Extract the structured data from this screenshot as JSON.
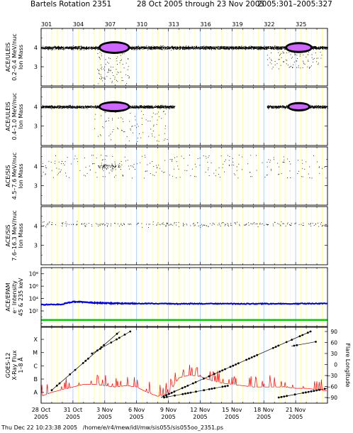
{
  "header": {
    "title": "Bartels Rotation 2351",
    "date_range": "28 Oct 2005 through 23 Nov 2005",
    "doy_range": "2005:301–2005:327"
  },
  "footer": {
    "timestamp": "Thu Dec 22 10:23:38 2005",
    "path": "/home/e/r4/mew/idl/mw/sis055/sis055oo_2351.ps"
  },
  "colors": {
    "grid_day": "#ffff99",
    "grid_rotation": "#aaccff",
    "points": "#000000",
    "density": "#cc66ff",
    "epam_blue": "#0000cc",
    "epam_green": "#00cc00",
    "xray": "#ff0000"
  },
  "chart_data": [
    {
      "type": "scatter",
      "panel": "ULEIS 0.2-0.4",
      "ylabel": [
        "ACE/ULEIS",
        "0.2–0.4 MeV/nuc",
        "Ion Mass"
      ],
      "yticks": [
        "4",
        "3"
      ],
      "ylim": [
        2,
        5
      ],
      "clusters": [
        {
          "x": [
            301,
            328
          ],
          "y": 4.0,
          "spread": 0.08,
          "density": "high"
        },
        {
          "x": [
            306.4,
            309.4
          ],
          "y": 4.0,
          "spread": 0.1,
          "density": "very high (purple core)"
        },
        {
          "x": [
            324,
            326.6
          ],
          "y": 4.0,
          "spread": 0.08,
          "density": "very high (purple core)"
        },
        {
          "x": [
            306.3,
            309.3
          ],
          "y": [
            2.1,
            3.8
          ],
          "density": "scatter"
        },
        {
          "x": [
            322.3,
            327.5
          ],
          "y": [
            2.9,
            3.8
          ],
          "density": "scatter"
        }
      ]
    },
    {
      "type": "scatter",
      "panel": "ULEIS 0.4-1.0",
      "ylabel": [
        "ACE/ULEIS",
        "0.4–1.0 MeV/nuc",
        "Ion Mass"
      ],
      "yticks": [
        "4",
        "3"
      ],
      "ylim": [
        2,
        5
      ],
      "clusters": [
        {
          "x": [
            301,
            313.6
          ],
          "y": 4.0,
          "spread": 0.07,
          "density": "high"
        },
        {
          "x": [
            306.4,
            309.4
          ],
          "y": 4.0,
          "spread": 0.08,
          "density": "very high (purple core)"
        },
        {
          "x": [
            322.3,
            328
          ],
          "y": 4.0,
          "spread": 0.07,
          "density": "high"
        },
        {
          "x": [
            324.2,
            326.4
          ],
          "y": 4.0,
          "spread": 0.06,
          "density": "very high (purple core)"
        },
        {
          "x": [
            306,
            313
          ],
          "y": [
            2.2,
            3.8
          ],
          "density": "scatter"
        }
      ]
    },
    {
      "type": "scatter",
      "panel": "SIS 4.5-7.6",
      "ylabel": [
        "ACE/SIS",
        "4.5–7.6 MeV/nuc",
        "Ion Mass"
      ],
      "yticks": [
        "4",
        "3"
      ],
      "ylim": [
        2,
        5
      ],
      "clusters": [
        {
          "x": [
            301,
            328
          ],
          "y": [
            3.4,
            4.6
          ],
          "density": "sparse"
        },
        {
          "x": [
            306.3,
            308.5
          ],
          "y": 4.0,
          "spread": 0.15,
          "density": "moderate"
        }
      ]
    },
    {
      "type": "scatter",
      "panel": "SIS 7.6-16.3",
      "ylabel": [
        "ACE/SIS",
        "7.6–16.3 MeV/nuc",
        "Ion Mass"
      ],
      "yticks": [
        "4",
        "3"
      ],
      "ylim": [
        2,
        5
      ],
      "clusters": [
        {
          "x": [
            301,
            328
          ],
          "y": 4.1,
          "spread": 0.12,
          "density": "sparse"
        }
      ]
    },
    {
      "type": "line",
      "panel": "EPAM",
      "ylabel": [
        "ACE/EPAM",
        "e⁻ Intensity",
        "45 & 235 keV"
      ],
      "yticks": [
        "10⁸",
        "10⁶",
        "10⁴",
        "10²"
      ],
      "yscale": "log",
      "ylim": [
        0.3,
        1000000000
      ],
      "series": [
        {
          "color": "blue",
          "x": [
            301,
            303,
            304,
            305,
            306,
            307,
            308,
            309,
            310,
            312,
            314,
            316,
            318,
            320,
            322,
            324,
            326,
            328
          ],
          "y": [
            1000,
            1200,
            3200,
            2600,
            2100,
            1800,
            1700,
            1650,
            1600,
            1550,
            1400,
            1450,
            1500,
            1400,
            1450,
            1400,
            1500,
            1600
          ]
        },
        {
          "color": "green",
          "x": [
            301,
            328
          ],
          "y": [
            3.5,
            3.5
          ]
        }
      ]
    },
    {
      "type": "line",
      "panel": "GOES-12",
      "ylabel": [
        "GOES-12",
        "X-Ray Flux",
        "1–8 Å"
      ],
      "yticks_left": [
        "X",
        "M",
        "C",
        "B",
        "A"
      ],
      "ylabel_right": "Flare Longitude",
      "yticks_right": [
        "90",
        "60",
        "30",
        "0",
        "−30",
        "−60",
        "−90"
      ],
      "xray_series": {
        "x": [
          301,
          302,
          303,
          304,
          305,
          306,
          307,
          308,
          309,
          310,
          311,
          312,
          313,
          314,
          315,
          316,
          317,
          318,
          319,
          320,
          321,
          322,
          323,
          324,
          325,
          326,
          327,
          328
        ],
        "level": [
          0.2,
          0.5,
          0.7,
          0.9,
          1.1,
          1.1,
          1.0,
          0.9,
          1.0,
          0.9,
          0.5,
          0.2,
          0.4,
          1.6,
          1.8,
          1.7,
          1.4,
          1.2,
          1.1,
          1.0,
          0.9,
          0.9,
          0.9,
          0.9,
          0.8,
          0.8,
          0.7,
          0.6
        ]
      },
      "longitude_tracks": [
        {
          "x": [
            302,
            308.4
          ],
          "lon": [
            -70,
            90
          ]
        },
        {
          "x": [
            305.8,
            309.4
          ],
          "lon": [
            30,
            90
          ]
        },
        {
          "x": [
            312.3,
            326.4
          ],
          "lon": [
            -90,
            90
          ]
        },
        {
          "x": [
            312.6,
            318.6
          ],
          "lon": [
            -90,
            -58
          ]
        },
        {
          "x": [
            323.4,
            328
          ],
          "lon": [
            -90,
            -65
          ]
        },
        {
          "x": [
            324.6,
            326.9
          ],
          "lon": [
            50,
            62
          ]
        }
      ]
    }
  ],
  "x_axis": {
    "range": [
      301,
      328
    ],
    "top_ticks": [
      {
        "doy": 301,
        "label": "301"
      },
      {
        "doy": 304,
        "label": "304"
      },
      {
        "doy": 307,
        "label": "307"
      },
      {
        "doy": 310,
        "label": "310"
      },
      {
        "doy": 313,
        "label": "313"
      },
      {
        "doy": 316,
        "label": "316"
      },
      {
        "doy": 319,
        "label": "319"
      },
      {
        "doy": 322,
        "label": "322"
      },
      {
        "doy": 325,
        "label": "325"
      }
    ],
    "bottom_ticks": [
      {
        "doy": 301,
        "label": "28 Oct",
        "year": "2005"
      },
      {
        "doy": 304,
        "label": "31 Oct",
        "year": "2005"
      },
      {
        "doy": 307,
        "label": "3 Nov",
        "year": "2005"
      },
      {
        "doy": 310,
        "label": "6 Nov",
        "year": "2005"
      },
      {
        "doy": 313,
        "label": "9 Nov",
        "year": "2005"
      },
      {
        "doy": 316,
        "label": "12 Nov",
        "year": "2005"
      },
      {
        "doy": 319,
        "label": "15 Nov",
        "year": "2005"
      },
      {
        "doy": 322,
        "label": "18 Nov",
        "year": "2005"
      },
      {
        "doy": 325,
        "label": "21 Nov",
        "year": "2005"
      }
    ]
  }
}
